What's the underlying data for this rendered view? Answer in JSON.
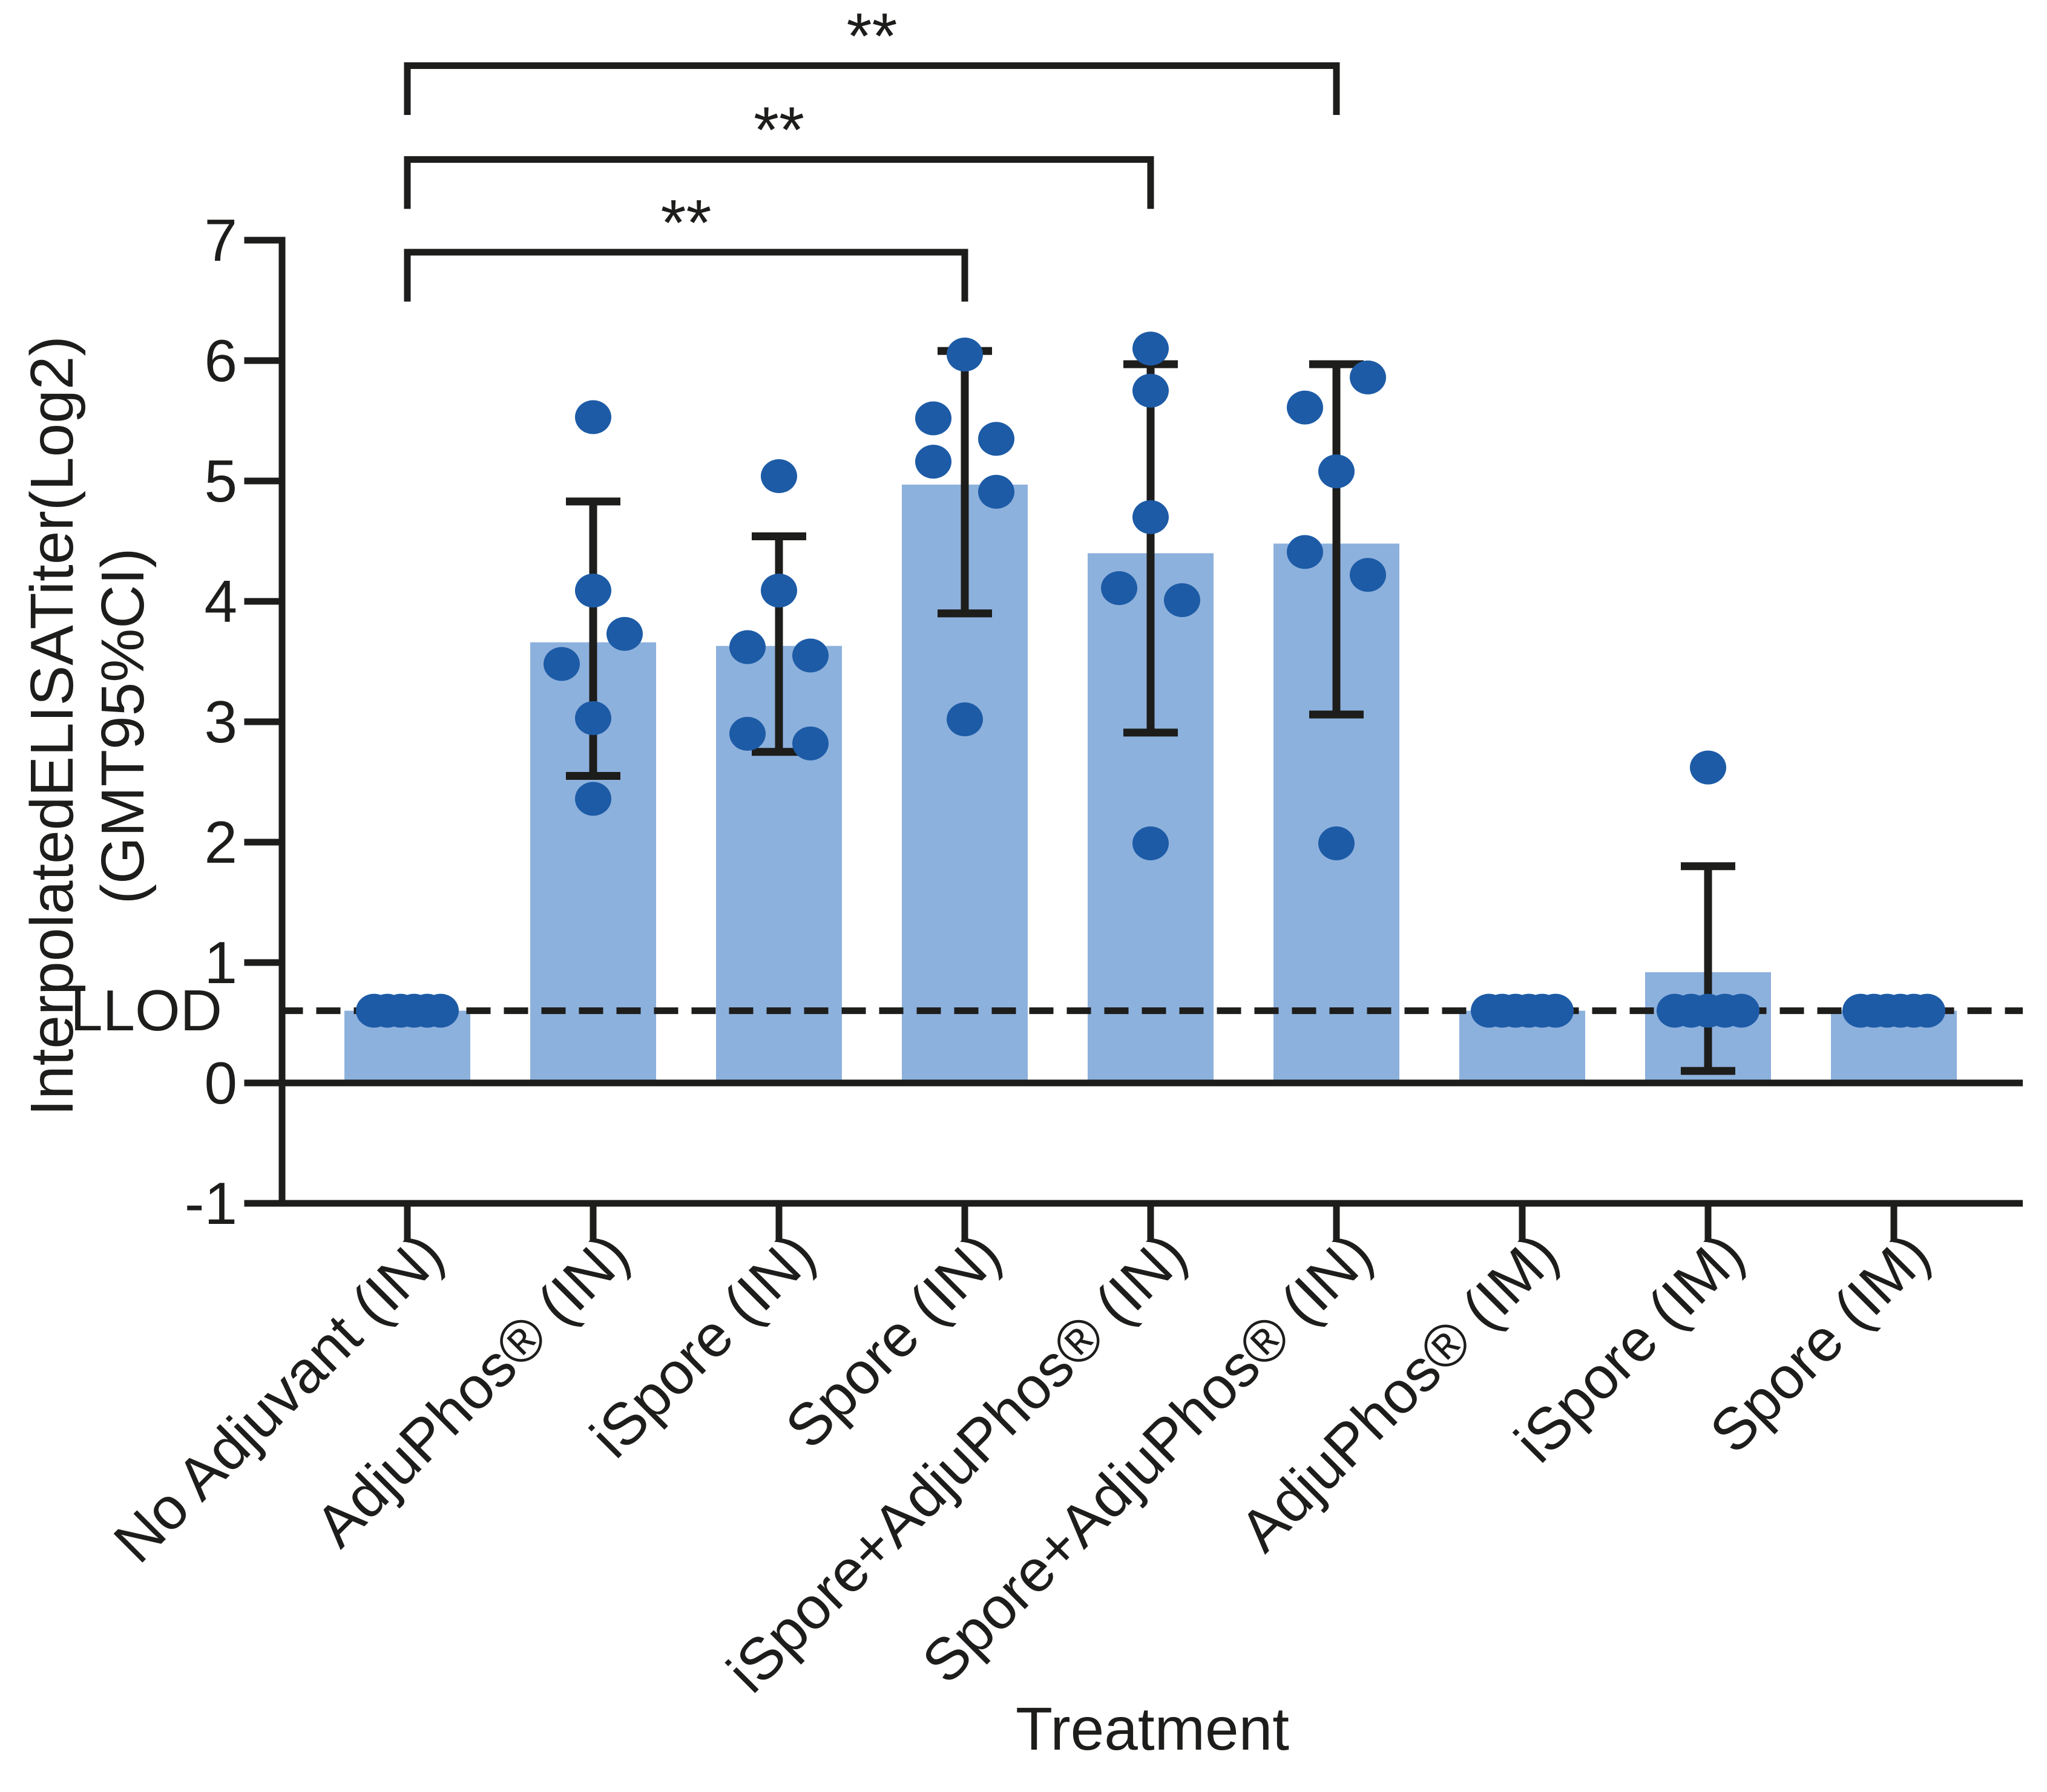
{
  "style": {
    "background": "#ffffff",
    "bar_fill": "#8db1dd",
    "dot_fill": "#1d5ba6",
    "line_color": "#1d1d1b",
    "text_color": "#1d1d1b"
  },
  "chart_data": {
    "type": "bar",
    "title": "",
    "xlabel": "Treatment",
    "ylabel": "InterpolatedELISATiter(Log2) (GMT95%CI)",
    "ylabel_line1": "InterpolatedELISATiter(Log2)",
    "ylabel_line2": "(GMT95%CI)",
    "llod_label": "LLOD",
    "llod_value": 0.6,
    "ylim": [
      -1,
      7
    ],
    "y_ticks": [
      -1,
      0,
      1,
      2,
      3,
      4,
      5,
      6,
      7
    ],
    "grid": false,
    "legend": "none",
    "error_bar_type": "GMT 95% CI",
    "categories": [
      "No Adjuvant (IN)",
      "AdjuPhos® (IN)",
      "iSpore (IN)",
      "Spore (IN)",
      "iSpore+AdjuPhos® (IN)",
      "Spore+AdjuPhos® (IN)",
      "AdjuPhos® (IM)",
      "iSpore (IM)",
      "Spore (IM)"
    ],
    "bar_means": [
      0.6,
      3.66,
      3.63,
      4.97,
      4.4,
      4.48,
      0.6,
      0.92,
      0.6
    ],
    "ci_low": [
      null,
      2.55,
      2.75,
      3.9,
      2.91,
      3.06,
      null,
      0.1,
      null
    ],
    "ci_high": [
      null,
      4.83,
      4.54,
      6.08,
      5.97,
      5.97,
      null,
      1.8,
      null
    ],
    "points": [
      [
        [
          -55,
          0.6
        ],
        [
          -33,
          0.6
        ],
        [
          -11,
          0.6
        ],
        [
          11,
          0.6
        ],
        [
          33,
          0.6
        ],
        [
          55,
          0.6
        ]
      ],
      [
        [
          0,
          5.53
        ],
        [
          0,
          4.09
        ],
        [
          52,
          3.73
        ],
        [
          -52,
          3.48
        ],
        [
          0,
          3.03
        ],
        [
          0,
          2.36
        ]
      ],
      [
        [
          0,
          5.04
        ],
        [
          0,
          4.09
        ],
        [
          -52,
          3.62
        ],
        [
          52,
          3.55
        ],
        [
          -52,
          2.9
        ],
        [
          52,
          2.82
        ]
      ],
      [
        [
          0,
          6.05
        ],
        [
          -52,
          5.52
        ],
        [
          52,
          5.35
        ],
        [
          -52,
          5.16
        ],
        [
          52,
          4.91
        ],
        [
          0,
          3.02
        ]
      ],
      [
        [
          0,
          6.1
        ],
        [
          0,
          5.75
        ],
        [
          0,
          4.7
        ],
        [
          -52,
          4.11
        ],
        [
          52,
          4.01
        ],
        [
          0,
          1.99
        ]
      ],
      [
        [
          52,
          5.86
        ],
        [
          -52,
          5.61
        ],
        [
          0,
          5.08
        ],
        [
          -52,
          4.41
        ],
        [
          52,
          4.22
        ],
        [
          0,
          1.99
        ]
      ],
      [
        [
          -55,
          0.6
        ],
        [
          -33,
          0.6
        ],
        [
          -11,
          0.6
        ],
        [
          11,
          0.6
        ],
        [
          33,
          0.6
        ],
        [
          55,
          0.6
        ]
      ],
      [
        [
          0,
          2.62
        ],
        [
          -55,
          0.6
        ],
        [
          -28,
          0.6
        ],
        [
          0,
          0.6
        ],
        [
          28,
          0.6
        ],
        [
          55,
          0.6
        ]
      ],
      [
        [
          -55,
          0.6
        ],
        [
          -33,
          0.6
        ],
        [
          -11,
          0.6
        ],
        [
          11,
          0.6
        ],
        [
          33,
          0.6
        ],
        [
          55,
          0.6
        ]
      ]
    ],
    "significance": [
      {
        "from": 0,
        "to": 3,
        "label": "**",
        "y": 6.9,
        "drop": 0.41
      },
      {
        "from": 0,
        "to": 4,
        "label": "**",
        "y": 7.67,
        "drop": 0.41
      },
      {
        "from": 0,
        "to": 5,
        "label": "**",
        "y": 8.45,
        "drop": 0.41
      }
    ]
  }
}
